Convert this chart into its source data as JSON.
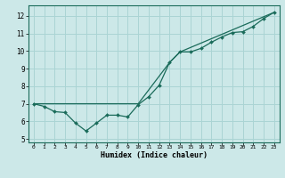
{
  "xlabel": "Humidex (Indice chaleur)",
  "ylabel": "",
  "background_color": "#cce8e8",
  "line_color": "#1a6b5a",
  "grid_color": "#aad4d4",
  "xlim": [
    -0.5,
    23.5
  ],
  "ylim": [
    4.8,
    12.6
  ],
  "yticks": [
    5,
    6,
    7,
    8,
    9,
    10,
    11,
    12
  ],
  "xticks": [
    0,
    1,
    2,
    3,
    4,
    5,
    6,
    7,
    8,
    9,
    10,
    11,
    12,
    13,
    14,
    15,
    16,
    17,
    18,
    19,
    20,
    21,
    22,
    23
  ],
  "line1_x": [
    0,
    1,
    2,
    3,
    4,
    5,
    6,
    7,
    8,
    9,
    10,
    11,
    12,
    13,
    14,
    15,
    16,
    17,
    18,
    19,
    20,
    21,
    22,
    23
  ],
  "line1_y": [
    7.0,
    6.85,
    6.55,
    6.5,
    5.9,
    5.45,
    5.9,
    6.35,
    6.35,
    6.25,
    6.95,
    7.4,
    8.05,
    9.35,
    9.95,
    9.95,
    10.15,
    10.5,
    10.8,
    11.05,
    11.1,
    11.4,
    11.85,
    12.2
  ],
  "line2_x": [
    0,
    10,
    13,
    14,
    23
  ],
  "line2_y": [
    7.0,
    7.0,
    9.35,
    9.95,
    12.2
  ]
}
